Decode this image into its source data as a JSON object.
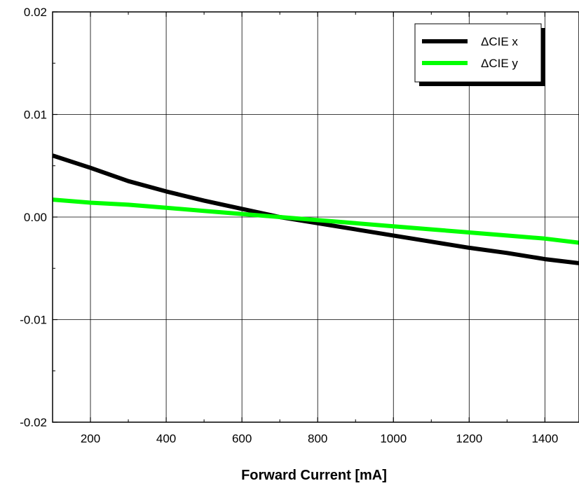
{
  "chart_data": {
    "type": "line",
    "title": "",
    "xlabel": "Forward Current [mA]",
    "ylabel": "",
    "xlim": [
      100,
      1490
    ],
    "ylim": [
      -0.02,
      0.02
    ],
    "x_ticks": [
      200,
      400,
      600,
      800,
      1000,
      1200,
      1400
    ],
    "x_tick_labels": [
      "200",
      "400",
      "600",
      "800",
      "1000",
      "1200",
      "1400"
    ],
    "y_ticks": [
      -0.02,
      -0.01,
      0.0,
      0.01,
      0.02
    ],
    "y_tick_labels": [
      "-0.02",
      "-0.01",
      "0.00",
      "0.01",
      "0.02"
    ],
    "grid": true,
    "legend_position": "top-right",
    "series": [
      {
        "name": "ΔCIE x",
        "color": "#000000",
        "x": [
          100,
          200,
          300,
          400,
          500,
          600,
          700,
          800,
          900,
          1000,
          1100,
          1200,
          1300,
          1400,
          1490
        ],
        "y": [
          0.006,
          0.0048,
          0.0035,
          0.0025,
          0.0016,
          0.0008,
          0.0,
          -0.0006,
          -0.0012,
          -0.0018,
          -0.0024,
          -0.003,
          -0.0035,
          -0.0041,
          -0.0045
        ]
      },
      {
        "name": "ΔCIE y",
        "color": "#00ff00",
        "x": [
          100,
          200,
          300,
          400,
          500,
          600,
          700,
          800,
          900,
          1000,
          1100,
          1200,
          1300,
          1400,
          1490
        ],
        "y": [
          0.0017,
          0.0014,
          0.0012,
          0.0009,
          0.0006,
          0.0003,
          0.0,
          -0.0003,
          -0.0006,
          -0.0009,
          -0.0012,
          -0.0015,
          -0.0018,
          -0.0021,
          -0.0025
        ]
      }
    ]
  }
}
